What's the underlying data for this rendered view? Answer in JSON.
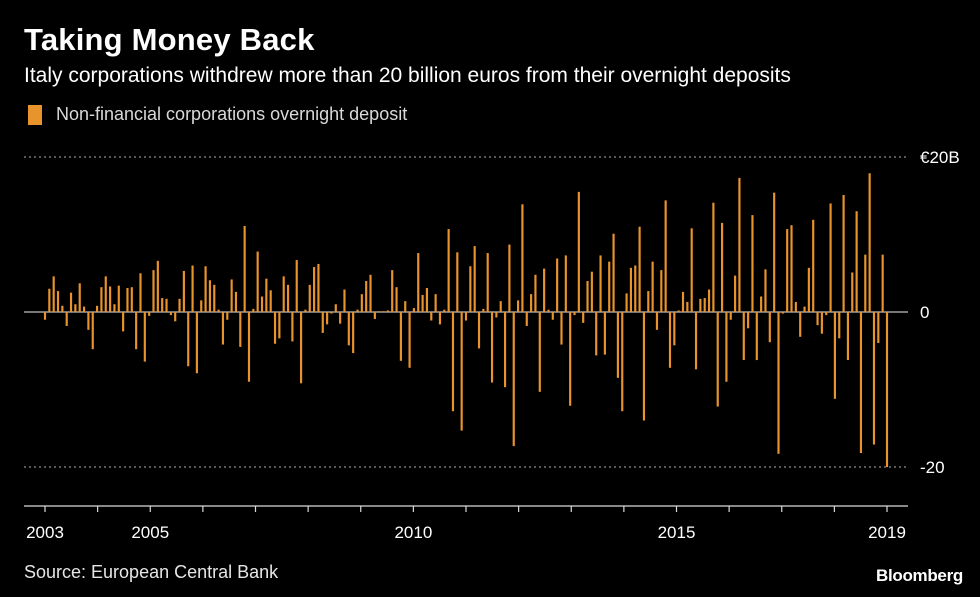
{
  "header": {
    "title": "Taking Money Back",
    "subtitle": "Italy corporations withdrew more than 20 billion euros from their overnight deposits"
  },
  "legend": {
    "label": "Non-financial corporations overnight deposit"
  },
  "footer": {
    "source": "Source: European Central Bank",
    "brand": "Bloomberg"
  },
  "colors": {
    "bar": "#e8932b",
    "background": "#000000",
    "grid": "#8c8c8c",
    "text": "#ffffff"
  },
  "chart_data": {
    "type": "bar",
    "title": "Taking Money Back",
    "subtitle": "Italy corporations withdrew more than 20 billion euros from their overnight deposits",
    "xlabel": "",
    "ylabel": "",
    "series_name": "Non-financial corporations overnight deposit",
    "units": "billion euros",
    "frequency": "monthly",
    "x_start": "2003-01",
    "x_end": "2019-01",
    "ylim": [
      -25,
      20
    ],
    "yticks": [
      {
        "value": 20,
        "label": "€20B"
      },
      {
        "value": 0,
        "label": "0"
      },
      {
        "value": -20,
        "label": "-20"
      }
    ],
    "xticks": [
      {
        "value": 2003.0,
        "label": "2003"
      },
      {
        "value": 2005.0,
        "label": "2005"
      },
      {
        "value": 2010.0,
        "label": "2010"
      },
      {
        "value": 2015.0,
        "label": "2015"
      },
      {
        "value": 2019.0,
        "label": "2019"
      }
    ],
    "legend_position": "top-left",
    "grid": "dotted horizontal at 20 and -20",
    "values": [
      -1.0,
      3.0,
      4.6,
      2.7,
      0.8,
      -1.8,
      2.5,
      1.0,
      3.7,
      0.7,
      -2.3,
      -4.8,
      0.8,
      3.2,
      4.6,
      3.3,
      1.0,
      3.4,
      -2.5,
      3.1,
      3.2,
      -4.8,
      5.0,
      -6.4,
      -0.5,
      5.4,
      6.6,
      1.8,
      1.7,
      -0.4,
      -1.2,
      1.7,
      5.3,
      -7.0,
      6.0,
      -7.9,
      1.5,
      5.9,
      4.1,
      3.5,
      0.3,
      -4.2,
      -1.0,
      4.2,
      2.6,
      -4.5,
      11.1,
      -9.0,
      0.4,
      7.8,
      2.0,
      4.3,
      2.8,
      -4.1,
      -3.4,
      4.6,
      3.5,
      -3.8,
      6.7,
      -9.2,
      0.3,
      3.5,
      5.8,
      6.2,
      -2.7,
      -1.6,
      -0.2,
      1.0,
      -1.5,
      2.9,
      -4.3,
      -5.3,
      0.3,
      2.3,
      4.0,
      4.8,
      -0.9,
      0.1,
      0.1,
      0.2,
      5.4,
      3.2,
      -6.3,
      1.4,
      -7.2,
      0.5,
      7.6,
      2.2,
      3.1,
      -1.1,
      2.3,
      -1.6,
      0.3,
      10.7,
      -12.8,
      7.7,
      -15.3,
      -1.1,
      5.9,
      8.5,
      -4.7,
      0.4,
      7.6,
      -9.1,
      -0.7,
      1.4,
      -9.7,
      8.7,
      -17.3,
      1.5,
      13.9,
      -1.8,
      2.3,
      4.8,
      -10.3,
      5.6,
      0.3,
      -1.0,
      6.9,
      -4.2,
      7.3,
      -12.1,
      -0.4,
      15.5,
      -1.4,
      4.0,
      5.2,
      -5.6,
      7.3,
      -5.5,
      6.5,
      10.1,
      -8.5,
      -12.8,
      2.4,
      5.7,
      6.0,
      11.0,
      -14.0,
      2.7,
      6.5,
      -2.3,
      5.4,
      14.4,
      -7.2,
      -4.3,
      0.2,
      2.6,
      1.3,
      10.8,
      -7.4,
      1.7,
      1.8,
      2.9,
      14.1,
      -12.2,
      11.5,
      -9.0,
      -1.0,
      4.7,
      17.3,
      -6.2,
      -2.1,
      12.5,
      -6.2,
      2.0,
      5.5,
      -3.9,
      15.4,
      -18.3,
      -0.2,
      10.7,
      11.2,
      1.3,
      -3.2,
      0.7,
      5.7,
      11.9,
      -1.7,
      -2.8,
      -0.4,
      14.0,
      -11.2,
      -3.4,
      15.1,
      -6.2,
      5.1,
      13.0,
      -18.2,
      7.4,
      17.9,
      -17.1,
      -4.0,
      7.4,
      -20.0
    ]
  }
}
